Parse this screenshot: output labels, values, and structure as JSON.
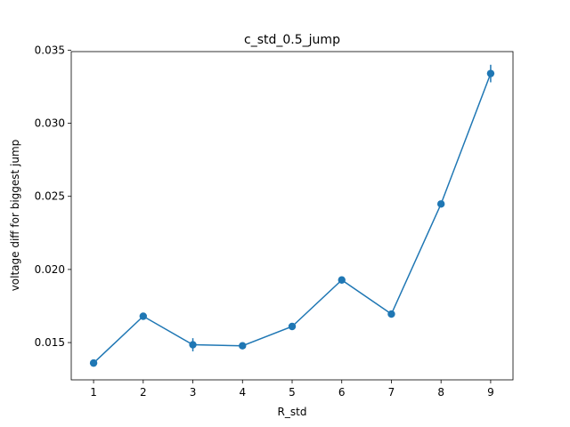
{
  "chart_data": {
    "type": "line",
    "title": "c_std_0.5_jump",
    "xlabel": "R_std",
    "ylabel": "voltage diff for biggest jump",
    "x": [
      1,
      2,
      3,
      4,
      5,
      6,
      7,
      8,
      9
    ],
    "series": [
      {
        "name": "voltage diff",
        "values": [
          0.0136,
          0.0168,
          0.01485,
          0.01478,
          0.0161,
          0.01928,
          0.01695,
          0.02448,
          0.0334
        ],
        "errors": [
          0.00025,
          0.0001,
          0.00045,
          0.0001,
          0.00012,
          0.0001,
          0.0001,
          0.00015,
          0.0006
        ]
      }
    ],
    "xlim": [
      0.55,
      9.45
    ],
    "ylim": [
      0.01245,
      0.0349
    ],
    "xticks": [
      "1",
      "2",
      "3",
      "4",
      "5",
      "6",
      "7",
      "8",
      "9"
    ],
    "xtick_values": [
      1,
      2,
      3,
      4,
      5,
      6,
      7,
      8,
      9
    ],
    "yticks": [
      "0.015",
      "0.020",
      "0.025",
      "0.030",
      "0.035"
    ],
    "ytick_values": [
      0.015,
      0.02,
      0.025,
      0.03,
      0.035
    ],
    "grid": false,
    "line_color": "#1f77b4"
  }
}
